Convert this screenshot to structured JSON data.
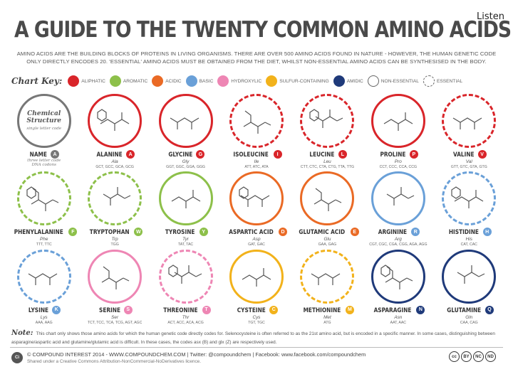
{
  "listen_label": "Listen",
  "title": "A GUIDE TO THE TWENTY COMMON AMINO ACIDS",
  "intro": "AMINO ACIDS ARE THE BUILDING BLOCKS OF PROTEINS IN LIVING ORGANISMS. THERE ARE OVER 500 AMINO ACIDS FOUND IN NATURE - HOWEVER, THE HUMAN GENETIC CODE ONLY DIRECTLY ENCODES 20. 'ESSENTIAL' AMINO ACIDS MUST BE OBTAINED FROM THE DIET, WHILST NON-ESSENTIAL AMINO ACIDS CAN BE SYNTHESISED IN THE BODY.",
  "key": {
    "title": "Chart Key:",
    "items": [
      {
        "label": "ALIPHATIC",
        "color": "#d9252a"
      },
      {
        "label": "AROMATIC",
        "color": "#8dc04a"
      },
      {
        "label": "ACIDIC",
        "color": "#ea6a25"
      },
      {
        "label": "BASIC",
        "color": "#6aa0d8"
      },
      {
        "label": "HYDROXYLIC",
        "color": "#ee86b4"
      },
      {
        "label": "SULFUR-CONTAINING",
        "color": "#f2b21b"
      },
      {
        "label": "AMIDIC",
        "color": "#1f3a7a"
      },
      {
        "label": "NON-ESSENTIAL",
        "style": "hollow"
      },
      {
        "label": "ESSENTIAL",
        "style": "dashed"
      }
    ]
  },
  "legend": {
    "structure_label": "Chemical Structure",
    "single_letter_label": "single letter code",
    "name_label": "NAME",
    "name_letter": "A",
    "three_letter_label": "three letter code",
    "codons_label": "DNA codons"
  },
  "amino_acids": [
    {
      "name": "ALANINE",
      "letter": "A",
      "abbr": "Ala",
      "codons": "GCT, GCC, GCA, GCG",
      "color": "#d9252a",
      "essential": false
    },
    {
      "name": "GLYCINE",
      "letter": "G",
      "abbr": "Gly",
      "codons": "GGT, GGC, GGA, GGG",
      "color": "#d9252a",
      "essential": false
    },
    {
      "name": "ISOLEUCINE",
      "letter": "I",
      "abbr": "Ile",
      "codons": "ATT, ATC, ATA",
      "color": "#d9252a",
      "essential": true
    },
    {
      "name": "LEUCINE",
      "letter": "L",
      "abbr": "Leu",
      "codons": "CTT, CTC, CTA, CTG, TTA, TTG",
      "color": "#d9252a",
      "essential": true
    },
    {
      "name": "PROLINE",
      "letter": "P",
      "abbr": "Pro",
      "codons": "CCT, CCC, CCA, CCG",
      "color": "#d9252a",
      "essential": false
    },
    {
      "name": "VALINE",
      "letter": "V",
      "abbr": "Val",
      "codons": "GTT, GTC, GTA, GTG",
      "color": "#d9252a",
      "essential": true
    },
    {
      "name": "PHENYLALANINE",
      "letter": "F",
      "abbr": "Phe",
      "codons": "TTT, TTC",
      "color": "#8dc04a",
      "essential": true
    },
    {
      "name": "TRYPTOPHAN",
      "letter": "W",
      "abbr": "Trp",
      "codons": "TGG",
      "color": "#8dc04a",
      "essential": true
    },
    {
      "name": "TYROSINE",
      "letter": "Y",
      "abbr": "Tyr",
      "codons": "TAT, TAC",
      "color": "#8dc04a",
      "essential": false
    },
    {
      "name": "ASPARTIC ACID",
      "letter": "D",
      "abbr": "Asp",
      "codons": "GAT, GAC",
      "color": "#ea6a25",
      "essential": false
    },
    {
      "name": "GLUTAMIC ACID",
      "letter": "E",
      "abbr": "Glu",
      "codons": "GAA, GAG",
      "color": "#ea6a25",
      "essential": false
    },
    {
      "name": "ARGININE",
      "letter": "R",
      "abbr": "Arg",
      "codons": "CGT, CGC, CGA, CGG, AGA, AGG",
      "color": "#6aa0d8",
      "essential": false
    },
    {
      "name": "HISTIDINE",
      "letter": "H",
      "abbr": "His",
      "codons": "CAT, CAC",
      "color": "#6aa0d8",
      "essential": true
    },
    {
      "name": "LYSINE",
      "letter": "K",
      "abbr": "Lys",
      "codons": "AAA, AAG",
      "color": "#6aa0d8",
      "essential": true
    },
    {
      "name": "SERINE",
      "letter": "S",
      "abbr": "Ser",
      "codons": "TCT, TCC, TCA, TCG, AGT, AGC",
      "color": "#ee86b4",
      "essential": false
    },
    {
      "name": "THREONINE",
      "letter": "T",
      "abbr": "Thr",
      "codons": "ACT, ACC, ACA, ACG",
      "color": "#ee86b4",
      "essential": true
    },
    {
      "name": "CYSTEINE",
      "letter": "C",
      "abbr": "Cys",
      "codons": "TGT, TGC",
      "color": "#f2b21b",
      "essential": false
    },
    {
      "name": "METHIONINE",
      "letter": "M",
      "abbr": "Met",
      "codons": "ATG",
      "color": "#f2b21b",
      "essential": true
    },
    {
      "name": "ASPARAGINE",
      "letter": "N",
      "abbr": "Asn",
      "codons": "AAT, AAC",
      "color": "#1f3a7a",
      "essential": false
    },
    {
      "name": "GLUTAMINE",
      "letter": "Q",
      "abbr": "Gln",
      "codons": "CAA, CAG",
      "color": "#1f3a7a",
      "essential": false
    }
  ],
  "note": {
    "label": "Note:",
    "text": "This chart only shows those amino acids for which the human genetic code directly codes for. Selenocysteine is often referred to as the 21st amino acid, but is encoded in a specific manner. In some cases, distinguishing between asparagine/aspartic acid and glutamine/glutamic acid is difficult. In these cases, the codes asx (B) and glx (Z) are respectively used."
  },
  "footer": {
    "logo": "Ci",
    "line1": "© COMPOUND INTEREST 2014 - WWW.COMPOUNDCHEM.COM | Twitter: @compoundchem | Facebook: www.facebook.com/compoundchem",
    "line2": "Shared under a Creative Commons Attribution-NonCommercial-NoDerivatives licence."
  },
  "cc_icons": [
    "cc",
    "BY",
    "NC",
    "ND"
  ]
}
